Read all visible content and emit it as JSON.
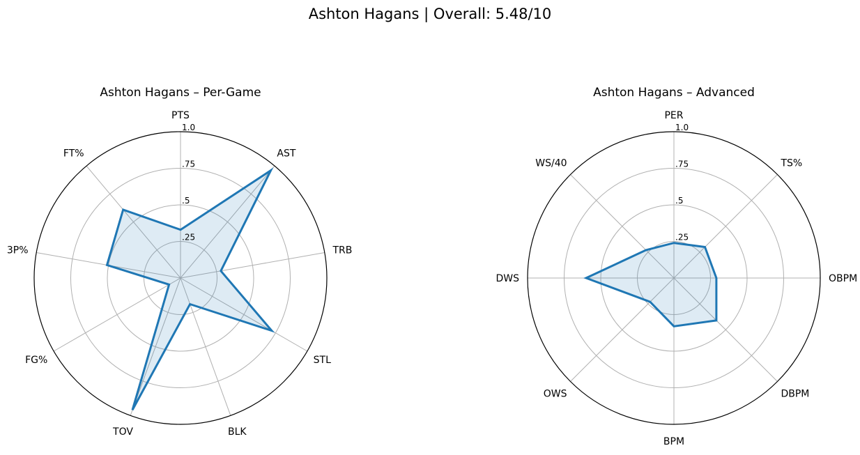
{
  "suptitle": "Ashton Hagans | Overall: 5.48/10",
  "colors": {
    "series": "#1f77b4",
    "grid": "#b0b0b0",
    "frame": "#000000"
  },
  "chart_data": [
    {
      "type": "radar",
      "title": "Ashton Hagans – Per-Game",
      "categories": [
        "PTS",
        "AST",
        "TRB",
        "STL",
        "BLK",
        "TOV",
        "FG%",
        "3P%",
        "FT%"
      ],
      "values": [
        0.33,
        0.96,
        0.28,
        0.72,
        0.19,
        0.96,
        0.09,
        0.51,
        0.61
      ],
      "ylim": [
        0,
        1
      ],
      "rticks": [
        0.25,
        0.5,
        0.75,
        1.0
      ],
      "rtick_labels": [
        ".25",
        ".5",
        ".75",
        "1.0"
      ],
      "grid": true
    },
    {
      "type": "radar",
      "title": "Ashton Hagans – Advanced",
      "categories": [
        "PER",
        "TS%",
        "OBPM",
        "DBPM",
        "BPM",
        "OWS",
        "DWS",
        "WS/40"
      ],
      "values": [
        0.24,
        0.3,
        0.29,
        0.41,
        0.33,
        0.23,
        0.6,
        0.27
      ],
      "ylim": [
        0,
        1
      ],
      "rticks": [
        0.25,
        0.5,
        0.75,
        1.0
      ],
      "rtick_labels": [
        ".25",
        ".5",
        ".75",
        "1.0"
      ],
      "grid": true
    }
  ]
}
